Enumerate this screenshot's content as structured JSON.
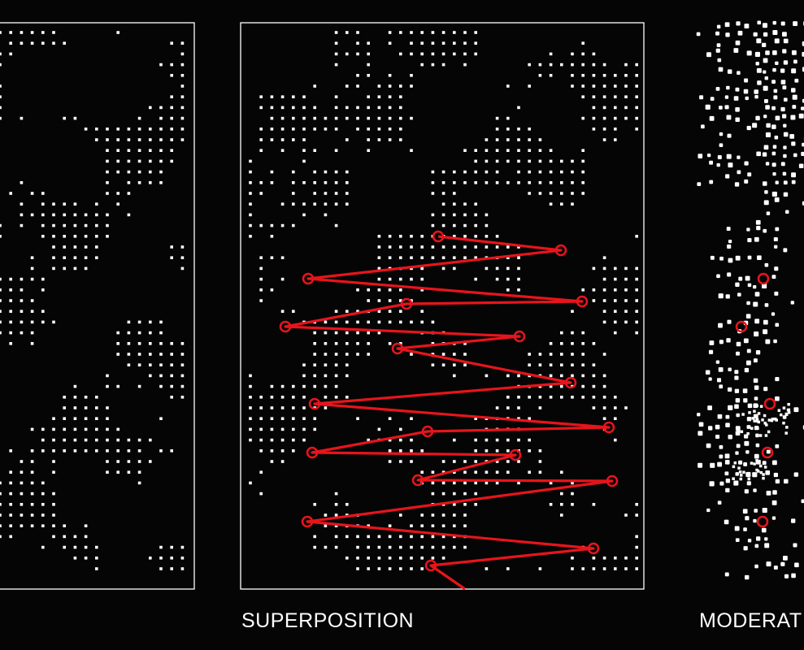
{
  "colors": {
    "background": "#050505",
    "dot": "#ffffff",
    "frame": "#ffffff",
    "path": "#e8141c"
  },
  "panels": [
    {
      "id": "left",
      "caption": ""
    },
    {
      "id": "superposition",
      "caption": "SUPERPOSITION"
    },
    {
      "id": "moderate",
      "caption": "MODERAT"
    }
  ]
}
